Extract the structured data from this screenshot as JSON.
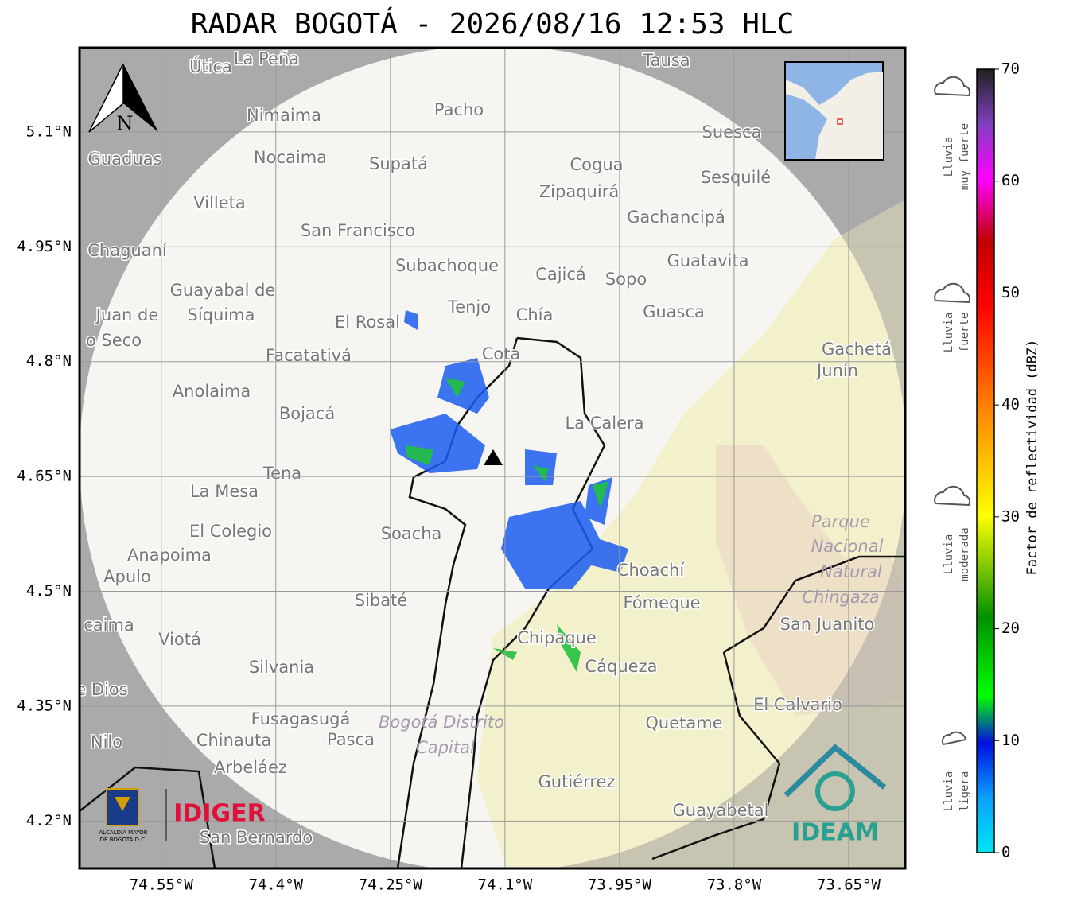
{
  "title": "RADAR BOGOTÁ - 2026/08/16 12:53 HLC",
  "map": {
    "xlim": [
      -74.657,
      -73.576
    ],
    "ylim": [
      4.138,
      5.21
    ],
    "xticks": [
      {
        "value": -74.55,
        "label": "74.55°W"
      },
      {
        "value": -74.4,
        "label": "74.4°W"
      },
      {
        "value": -74.25,
        "label": "74.25°W"
      },
      {
        "value": -74.1,
        "label": "74.1°W"
      },
      {
        "value": -73.95,
        "label": "73.95°W"
      },
      {
        "value": -73.8,
        "label": "73.8°W"
      },
      {
        "value": -73.65,
        "label": "73.65°W"
      }
    ],
    "yticks": [
      {
        "value": 5.1,
        "label": "5.1°N"
      },
      {
        "value": 4.95,
        "label": "4.95°N"
      },
      {
        "value": 4.8,
        "label": "4.8°N"
      },
      {
        "value": 4.65,
        "label": "4.65°N"
      },
      {
        "value": 4.5,
        "label": "4.5°N"
      },
      {
        "value": 4.35,
        "label": "4.35°N"
      },
      {
        "value": 4.2,
        "label": "4.2°N"
      }
    ],
    "north": "N",
    "places": [
      "Útica",
      "La Peña",
      "Tausa",
      "Pacho",
      "Nimaima",
      "Suesca",
      "Guaduas",
      "Nocaima",
      "Supatá",
      "Cogua",
      "Sesquilé",
      "Zipaquirá",
      "Villeta",
      "Gachancipá",
      "San Francisco",
      "Chaguaní",
      "Guatavita",
      "Subachoque",
      "Cajicá",
      "Sopo",
      "Guayabal de",
      "Síquima",
      "Tenjo",
      "Chía",
      "Guasca",
      "Juan de",
      "El Rosal",
      "o Seco",
      "Gachetá",
      "Facatativá",
      "Junín",
      "Cota",
      "Anolaima",
      "Bojacá",
      "La Calera",
      "Tena",
      "La Mesa",
      "El Colegio",
      "Soacha",
      "Anapoima",
      "Apulo",
      "Choachí",
      "Fómeque",
      "Sibaté",
      "San Juanito",
      "caima",
      "Viotá",
      "Chipaque",
      "Silvania",
      "Cáqueza",
      "e Dios",
      "El Calvario",
      "Fusagasugá",
      "Quetame",
      "Nilo",
      "Chinauta",
      "Pasca",
      "Arbeláez",
      "Gutiérrez",
      "Guayabetal",
      "San Bernardo"
    ],
    "areas": [
      "Parque",
      "Nacional",
      "Natural",
      "Chingaza",
      "Bogotá Distrito",
      "Capital"
    ]
  },
  "colorbar": {
    "label": "Factor de reflectividad (dBZ)",
    "lim": [
      0,
      70
    ],
    "ticks": [
      0,
      10,
      20,
      30,
      40,
      50,
      60,
      70
    ]
  },
  "legend": [
    [
      "Lluvia",
      "muy fuerte"
    ],
    [
      "Lluvia",
      "fuerte"
    ],
    [
      "Lluvia",
      "moderada"
    ],
    [
      "Lluvia",
      "ligera"
    ]
  ],
  "logos": {
    "alcaldia": [
      "ALCALDÍA MAYOR",
      "DE BOGOTÁ D.C."
    ],
    "idiger": "IDIGER",
    "ideam": "IDEAM"
  }
}
